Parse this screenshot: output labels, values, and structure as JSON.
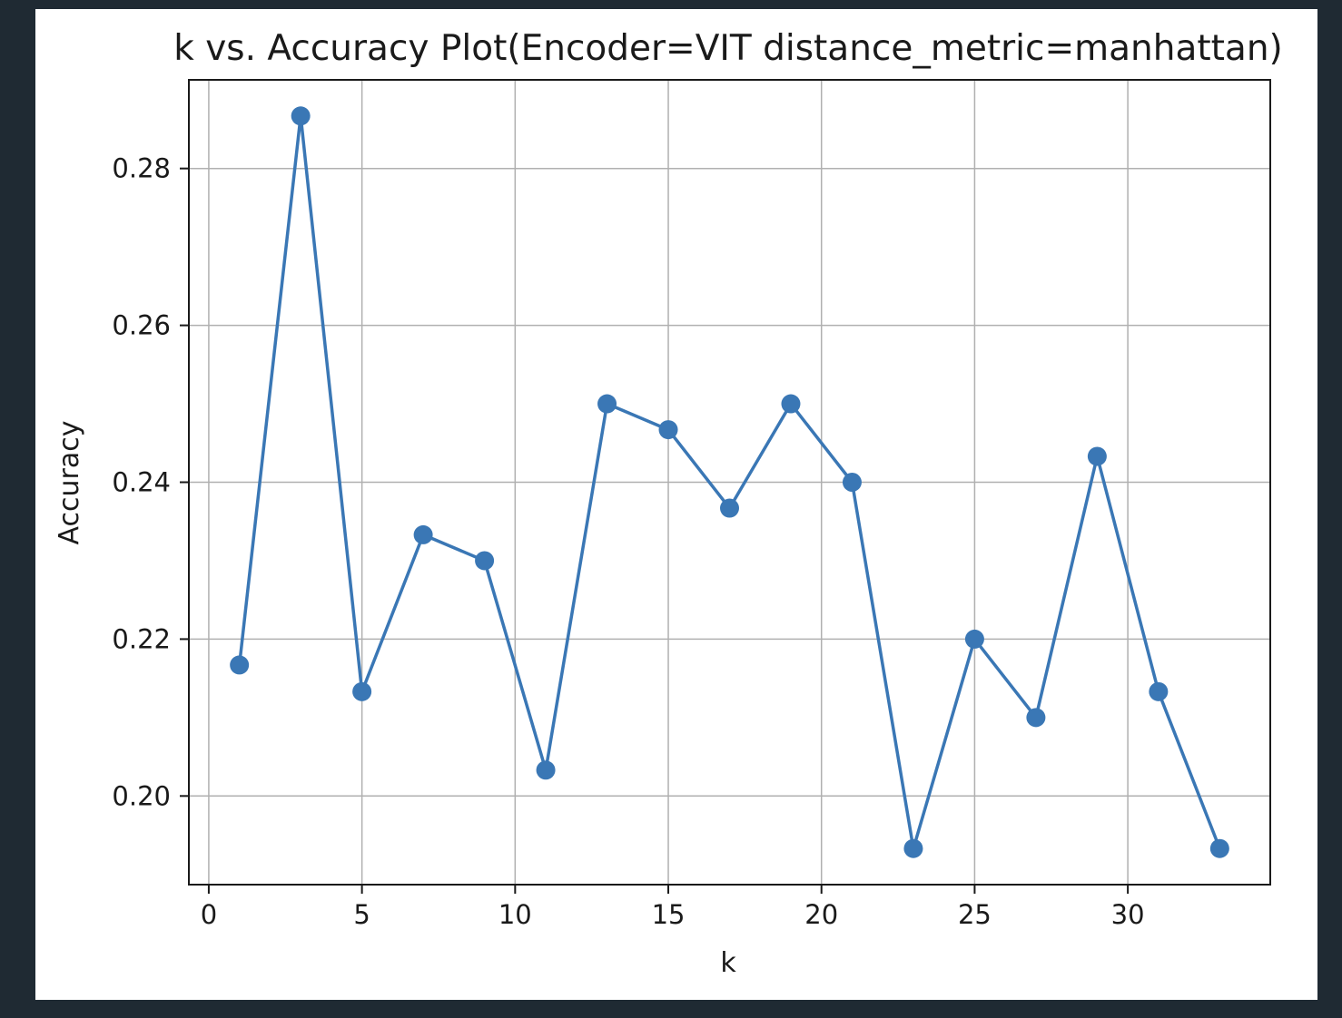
{
  "colors": {
    "page_background": "#1f2a33",
    "figure_background": "#ffffff",
    "series_color": "#3a77b5",
    "grid_color": "#b0b0b0",
    "text_color": "#1a1a1a"
  },
  "chart_data": {
    "type": "line",
    "title": "k vs. Accuracy Plot(Encoder=VIT distance_metric=manhattan)",
    "xlabel": "k",
    "ylabel": "Accuracy",
    "xlim": [
      -0.65,
      34.65
    ],
    "ylim": [
      0.1887,
      0.2913
    ],
    "xticks": [
      0,
      5,
      10,
      15,
      20,
      25,
      30
    ],
    "xtick_labels": [
      "0",
      "5",
      "10",
      "15",
      "20",
      "25",
      "30"
    ],
    "yticks": [
      0.2,
      0.22,
      0.24,
      0.26,
      0.28
    ],
    "ytick_labels": [
      "0.20",
      "0.22",
      "0.24",
      "0.26",
      "0.28"
    ],
    "grid": true,
    "legend": "none",
    "marker": "circle",
    "series": [
      {
        "x": [
          1,
          3,
          5,
          7,
          9,
          11,
          13,
          15,
          17,
          19,
          21,
          23,
          25,
          27,
          29,
          31,
          33
        ],
        "y": [
          0.2167,
          0.2867,
          0.2133,
          0.2333,
          0.23,
          0.2033,
          0.25,
          0.2467,
          0.2367,
          0.25,
          0.24,
          0.1933,
          0.22,
          0.21,
          0.2433,
          0.2133,
          0.1933
        ]
      }
    ]
  }
}
